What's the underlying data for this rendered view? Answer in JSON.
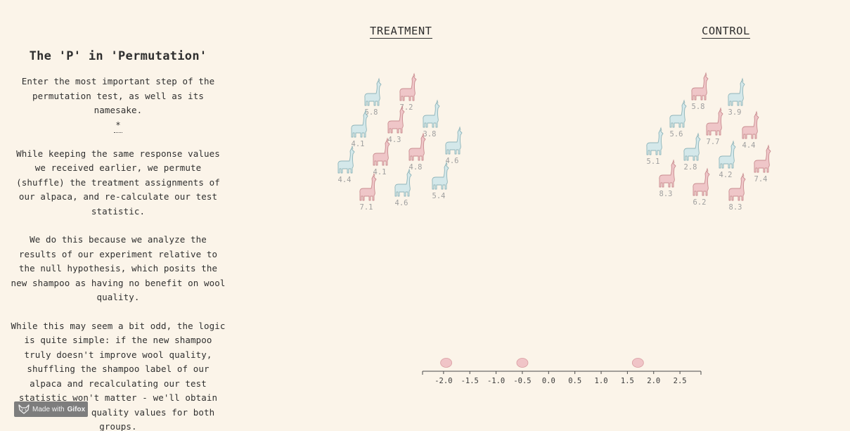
{
  "sidebar": {
    "title": "The 'P' in 'Permutation'",
    "intro": "Enter the most important step of the permutation test, as well as its namesake.",
    "footnote_marker": "*",
    "paragraph1": "While keeping the same response values we received earlier, we permute (shuffle) the treatment assignments of our alpaca, and re-calculate our test statistic.",
    "paragraph2": "We do this because we analyze the results of our experiment relative to the null hypothesis, which posits the new shampoo as having no benefit on wool quality.",
    "paragraph3": "While this may seem a bit odd, the logic is quite simple: if the new shampoo truly doesn't improve wool quality, shuffling the shampoo label of our alpaca and recalculating our test statistic won't matter - we'll obtain similar wool quality values for both groups."
  },
  "groups": {
    "treatment_label": "TREATMENT",
    "control_label": "CONTROL"
  },
  "colors": {
    "background": "#fbf4e9",
    "pink_alpaca": "#efc6c8",
    "blue_alpaca": "#d4e8ea",
    "dot": "#f0c4c7"
  },
  "alpacas": {
    "treatment": [
      {
        "value": "5.8",
        "color": "blue"
      },
      {
        "value": "7.2",
        "color": "pink"
      },
      {
        "value": "4.1",
        "color": "blue"
      },
      {
        "value": "4.3",
        "color": "pink"
      },
      {
        "value": "3.8",
        "color": "blue"
      },
      {
        "value": "4.4",
        "color": "blue"
      },
      {
        "value": "4.1",
        "color": "pink"
      },
      {
        "value": "4.8",
        "color": "pink"
      },
      {
        "value": "4.6",
        "color": "blue"
      },
      {
        "value": "7.1",
        "color": "pink"
      },
      {
        "value": "4.6",
        "color": "blue"
      },
      {
        "value": "5.4",
        "color": "blue"
      }
    ],
    "control": [
      {
        "value": "5.8",
        "color": "pink"
      },
      {
        "value": "3.9",
        "color": "blue"
      },
      {
        "value": "5.6",
        "color": "blue"
      },
      {
        "value": "7.7",
        "color": "pink"
      },
      {
        "value": "4.4",
        "color": "pink"
      },
      {
        "value": "5.1",
        "color": "blue"
      },
      {
        "value": "2.8",
        "color": "blue"
      },
      {
        "value": "4.2",
        "color": "blue"
      },
      {
        "value": "7.4",
        "color": "pink"
      },
      {
        "value": "8.3",
        "color": "pink"
      },
      {
        "value": "6.2",
        "color": "pink"
      },
      {
        "value": "8.3",
        "color": "pink"
      }
    ]
  },
  "axis": {
    "ticks": [
      "-2.0",
      "-1.5",
      "-1.0",
      "-0.5",
      "0.0",
      "0.5",
      "1.0",
      "1.5",
      "2.0",
      "2.5"
    ],
    "domain": [
      -2.4,
      2.9
    ],
    "dots": [
      -1.95,
      -0.5,
      1.7
    ]
  },
  "badge": {
    "prefix": "Made with",
    "brand": "Gifox"
  }
}
